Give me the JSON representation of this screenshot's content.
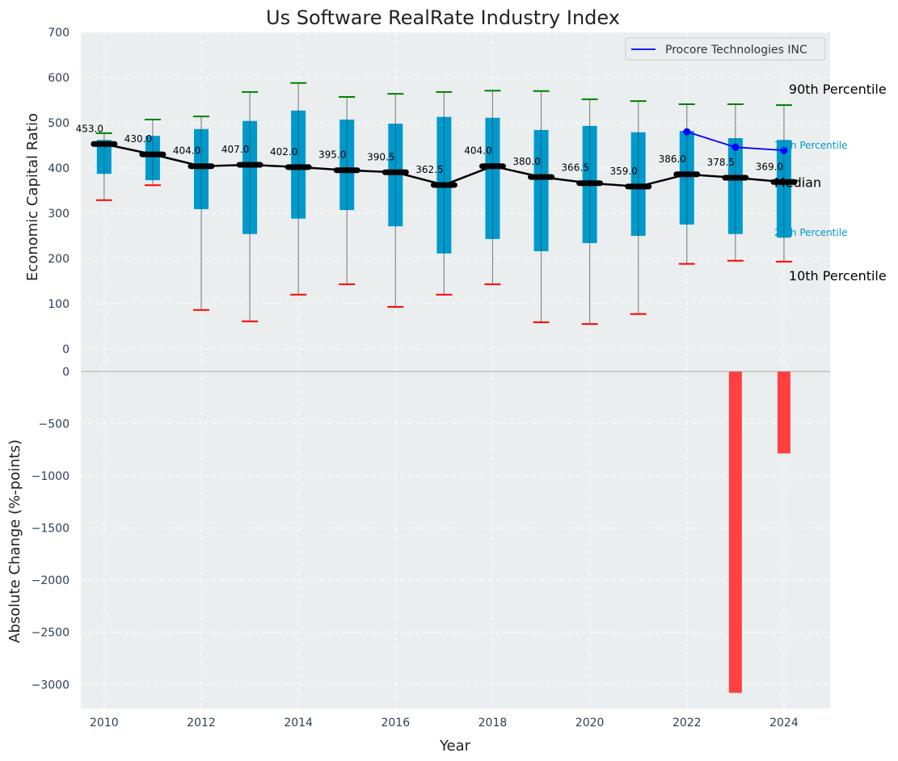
{
  "chart_data": [
    {
      "type": "box",
      "title": "Us Software RealRate Industry Index",
      "ylabel": "Economic Capital Ratio",
      "ylim": [
        -27,
        700
      ],
      "xlim": [
        2009.52,
        2024.95
      ],
      "yticks": [
        0,
        100,
        200,
        300,
        400,
        500,
        600,
        700
      ],
      "grid": true,
      "x": [
        2010,
        2011,
        2012,
        2013,
        2014,
        2015,
        2016,
        2017,
        2018,
        2019,
        2020,
        2021,
        2022,
        2023,
        2024
      ],
      "p10": [
        329,
        362,
        86,
        61,
        120,
        143,
        93,
        120,
        143,
        59,
        55,
        77,
        188,
        195,
        193
      ],
      "p25": [
        387,
        373,
        309,
        254,
        288,
        307,
        271,
        211,
        243,
        216,
        234,
        250,
        275,
        254,
        246
      ],
      "median": [
        453.0,
        430.0,
        404.0,
        407.0,
        402.0,
        395.0,
        390.5,
        362.5,
        404.0,
        380.0,
        366.5,
        359.0,
        386.0,
        378.5,
        369.0
      ],
      "median_labels": [
        "453.0",
        "430.0",
        "404.0",
        "407.0",
        "402.0",
        "395.0",
        "390.5",
        "362.5",
        "404.0",
        "380.0",
        "366.5",
        "359.0",
        "386.0",
        "378.5",
        "369.0"
      ],
      "p75": [
        462,
        471,
        486,
        504,
        527,
        507,
        498,
        513,
        511,
        484,
        493,
        479,
        482,
        466,
        462
      ],
      "p90": [
        477,
        507,
        514,
        568,
        588,
        557,
        564,
        568,
        571,
        570,
        552,
        548,
        541,
        541,
        539
      ],
      "company_series": {
        "name": "Procore Technologies INC",
        "x": [
          2022,
          2023,
          2024
        ],
        "values": [
          480,
          446,
          439
        ],
        "color": "#0000ff"
      },
      "legend": {
        "placement": "top-right",
        "entries": [
          "Procore Technologies INC"
        ]
      },
      "annotations": {
        "p90": "90th Percentile",
        "p75": "75th Percentile",
        "median": "Median",
        "p25": "25th Percentile",
        "p10": "10th Percentile"
      },
      "colors": {
        "box": "#0099cc",
        "median": "#000000",
        "p90_cap": "#008000",
        "p10_cap": "#ff0000",
        "background": "#eaeeef"
      }
    },
    {
      "type": "bar",
      "xlabel": "Year",
      "ylabel": "Absolute Change (%-points)",
      "ylim": [
        -3230,
        100
      ],
      "yticks": [
        0,
        -500,
        -1000,
        -1500,
        -2000,
        -2500,
        -3000
      ],
      "ytick_labels": [
        "0",
        "−500",
        "−1000",
        "−1500",
        "−2000",
        "−2500",
        "−3000"
      ],
      "xticks": [
        2010,
        2012,
        2014,
        2016,
        2018,
        2020,
        2022,
        2024
      ],
      "x": [
        2023,
        2024
      ],
      "values": [
        -3080,
        -785
      ],
      "color": "#ff4040"
    }
  ]
}
